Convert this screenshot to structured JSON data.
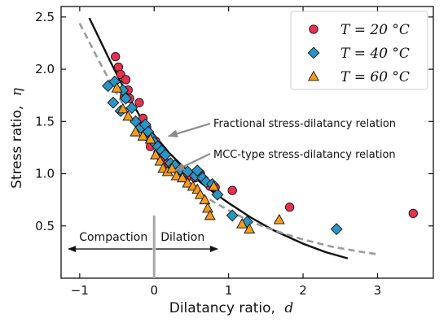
{
  "chart_data": {
    "type": "scatter",
    "title": "",
    "xlabel": "Dilatancy ratio,",
    "xlabel_symbol": "d",
    "ylabel": "Stress ratio,",
    "ylabel_symbol": "η",
    "xlim": [
      -1.25,
      3.75
    ],
    "ylim": [
      0.0,
      2.6
    ],
    "xticks": [
      -1,
      0,
      1,
      2,
      3
    ],
    "yticks": [
      0.5,
      1.0,
      1.5,
      2.0,
      2.5
    ],
    "xtick_labels": [
      "−1",
      "0",
      "1",
      "2",
      "3"
    ],
    "ytick_labels": [
      "0.5",
      "1.0",
      "1.5",
      "2.0",
      "2.5"
    ],
    "grid": false,
    "legend_position": "top-right",
    "series": [
      {
        "name": "T = 20 °C",
        "marker": "circle",
        "color": "#e8314f",
        "points": [
          [
            -0.52,
            2.12
          ],
          [
            -0.48,
            2.02
          ],
          [
            -0.45,
            1.95
          ],
          [
            -0.38,
            1.9
          ],
          [
            -0.35,
            1.8
          ],
          [
            -0.4,
            1.74
          ],
          [
            -0.33,
            1.72
          ],
          [
            -0.2,
            1.68
          ],
          [
            -0.15,
            1.53
          ],
          [
            -0.1,
            1.44
          ],
          [
            -0.08,
            1.35
          ],
          [
            -0.05,
            1.26
          ],
          [
            0.02,
            1.31
          ],
          [
            0.05,
            1.2
          ],
          [
            0.1,
            1.15
          ],
          [
            0.18,
            1.1
          ],
          [
            0.25,
            1.06
          ],
          [
            0.32,
            1.03
          ],
          [
            0.4,
            1.0
          ],
          [
            0.48,
            0.98
          ],
          [
            0.55,
            0.96
          ],
          [
            0.62,
            1.0
          ],
          [
            0.68,
            0.93
          ],
          [
            0.75,
            0.88
          ],
          [
            0.82,
            0.87
          ],
          [
            1.05,
            0.84
          ],
          [
            1.82,
            0.68
          ],
          [
            3.48,
            0.62
          ]
        ]
      },
      {
        "name": "T = 40 °C",
        "marker": "diamond",
        "color": "#2b95c5",
        "points": [
          [
            -0.62,
            1.84
          ],
          [
            -0.53,
            1.88
          ],
          [
            -0.42,
            1.8
          ],
          [
            -0.38,
            1.72
          ],
          [
            -0.55,
            1.68
          ],
          [
            -0.3,
            1.63
          ],
          [
            -0.45,
            1.6
          ],
          [
            -0.25,
            1.5
          ],
          [
            -0.18,
            1.44
          ],
          [
            -0.12,
            1.47
          ],
          [
            -0.08,
            1.4
          ],
          [
            -0.03,
            1.34
          ],
          [
            0.0,
            1.3
          ],
          [
            0.05,
            1.26
          ],
          [
            0.1,
            1.22
          ],
          [
            0.15,
            1.18
          ],
          [
            0.22,
            1.1
          ],
          [
            0.28,
            1.08
          ],
          [
            0.35,
            1.04
          ],
          [
            0.45,
            1.02
          ],
          [
            0.55,
            0.98
          ],
          [
            0.58,
            1.03
          ],
          [
            0.65,
            0.96
          ],
          [
            0.7,
            0.92
          ],
          [
            0.78,
            0.9
          ],
          [
            0.85,
            0.8
          ],
          [
            1.05,
            0.6
          ],
          [
            1.25,
            0.54
          ],
          [
            2.45,
            0.47
          ]
        ]
      },
      {
        "name": "T = 60 °C",
        "marker": "triangle",
        "color": "#f59b1c",
        "points": [
          [
            -0.5,
            1.82
          ],
          [
            -0.42,
            1.62
          ],
          [
            -0.35,
            1.55
          ],
          [
            -0.25,
            1.4
          ],
          [
            -0.15,
            1.36
          ],
          [
            -0.05,
            1.33
          ],
          [
            0.02,
            1.18
          ],
          [
            0.08,
            1.12
          ],
          [
            0.12,
            1.05
          ],
          [
            0.18,
            1.02
          ],
          [
            0.24,
            1.05
          ],
          [
            0.3,
            0.98
          ],
          [
            0.38,
            0.96
          ],
          [
            0.45,
            0.91
          ],
          [
            0.52,
            0.88
          ],
          [
            0.58,
            0.85
          ],
          [
            0.62,
            0.8
          ],
          [
            0.68,
            0.75
          ],
          [
            0.72,
            0.67
          ],
          [
            0.75,
            0.6
          ],
          [
            0.8,
            0.88
          ],
          [
            1.18,
            0.52
          ],
          [
            1.28,
            0.47
          ],
          [
            1.68,
            0.56
          ]
        ]
      }
    ],
    "lines": [
      {
        "name": "Fractional stress-dilatancy relation",
        "style": "solid",
        "color": "#111111",
        "points": [
          [
            -0.87,
            2.49
          ],
          [
            -0.6,
            2.09
          ],
          [
            -0.4,
            1.81
          ],
          [
            -0.2,
            1.56
          ],
          [
            0.0,
            1.37
          ],
          [
            0.2,
            1.2
          ],
          [
            0.4,
            1.06
          ],
          [
            0.6,
            0.93
          ],
          [
            0.8,
            0.82
          ],
          [
            1.0,
            0.72
          ],
          [
            1.3,
            0.58
          ],
          [
            1.6,
            0.46
          ],
          [
            2.0,
            0.33
          ],
          [
            2.3,
            0.25
          ],
          [
            2.6,
            0.19
          ]
        ]
      },
      {
        "name": "MCC-type stress-dilatancy relation",
        "style": "dashed",
        "color": "#9a9a9a",
        "points": [
          [
            -1.0,
            2.44
          ],
          [
            -0.8,
            2.16
          ],
          [
            -0.6,
            1.89
          ],
          [
            -0.4,
            1.64
          ],
          [
            -0.2,
            1.42
          ],
          [
            0.0,
            1.22
          ],
          [
            0.2,
            1.06
          ],
          [
            0.4,
            0.93
          ],
          [
            0.6,
            0.82
          ],
          [
            0.8,
            0.73
          ],
          [
            1.0,
            0.65
          ],
          [
            1.3,
            0.54
          ],
          [
            1.6,
            0.46
          ],
          [
            2.0,
            0.37
          ],
          [
            2.4,
            0.3
          ],
          [
            2.8,
            0.25
          ],
          [
            3.0,
            0.23
          ]
        ]
      }
    ],
    "annotations": [
      {
        "text": "Fractional stress-dilatancy relation",
        "points_to": [
          0.15,
          1.25
        ]
      },
      {
        "text": "MCC-type stress-dilatancy relation",
        "points_to": [
          0.2,
          1.0
        ]
      }
    ],
    "regions": {
      "divider_x": 0,
      "left_label": "Compaction",
      "right_label": "Dilation",
      "arrow_y": 0.28,
      "arrow_extent": [
        -1.15,
        0.85
      ]
    }
  }
}
